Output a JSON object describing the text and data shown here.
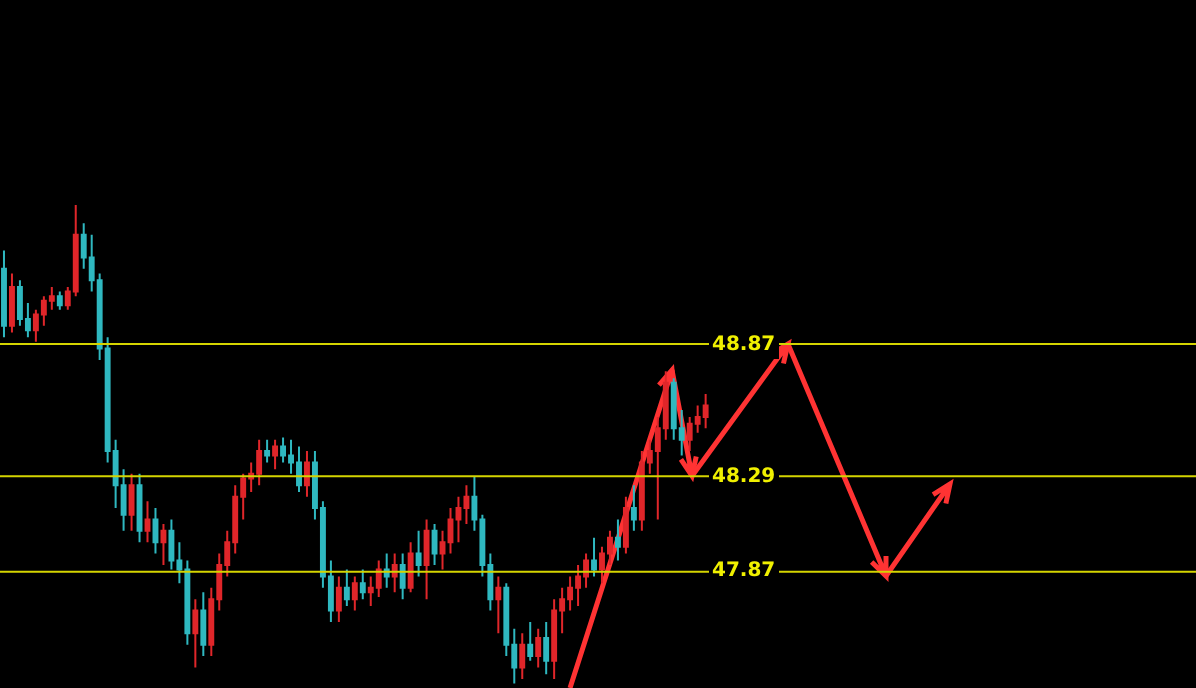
{
  "chart_data": {
    "type": "candlestick",
    "categories": [
      null,
      null,
      null,
      null,
      null,
      null,
      null,
      null,
      null,
      null,
      null,
      null,
      null,
      null,
      null,
      null,
      null,
      null,
      null,
      null,
      null,
      null,
      null,
      null,
      null,
      null,
      null,
      null,
      null,
      null,
      null,
      null,
      null,
      null,
      null,
      null,
      null,
      null,
      null,
      null,
      null,
      null,
      null,
      null,
      null,
      null,
      null,
      null,
      null,
      null,
      null,
      null,
      null,
      null,
      null,
      null,
      null,
      null,
      null,
      null,
      null,
      null,
      null,
      null,
      null,
      null,
      null,
      null,
      null,
      null,
      null,
      null,
      null,
      null,
      null,
      null,
      null,
      null,
      null,
      null,
      null,
      null,
      null,
      null,
      null,
      null,
      null,
      null,
      null,
      null,
      null,
      null,
      null,
      null,
      null,
      null,
      null,
      null,
      null,
      null,
      null,
      null,
      null,
      null,
      null,
      null,
      null,
      null,
      null,
      null,
      null,
      null,
      null,
      null,
      null,
      null,
      null,
      null,
      null,
      null,
      null,
      null,
      null,
      null,
      null,
      null,
      null,
      null,
      null,
      null,
      null,
      null,
      null,
      null,
      null,
      null,
      null,
      null,
      null,
      null,
      null,
      null,
      null,
      null,
      null,
      null,
      null,
      null,
      null,
      null
    ],
    "ohlc": [
      [
        49.2,
        49.28,
        48.9,
        48.95
      ],
      [
        48.95,
        49.18,
        48.92,
        49.12
      ],
      [
        49.12,
        49.15,
        48.95,
        48.98
      ],
      [
        48.98,
        49.05,
        48.9,
        48.93
      ],
      [
        48.93,
        49.02,
        48.88,
        49.0
      ],
      [
        49.0,
        49.08,
        48.95,
        49.06
      ],
      [
        49.06,
        49.12,
        49.02,
        49.08
      ],
      [
        49.08,
        49.1,
        49.02,
        49.04
      ],
      [
        49.04,
        49.12,
        49.02,
        49.1
      ],
      [
        49.1,
        49.48,
        49.08,
        49.35
      ],
      [
        49.35,
        49.4,
        49.2,
        49.25
      ],
      [
        49.25,
        49.35,
        49.1,
        49.15
      ],
      [
        49.15,
        49.18,
        48.8,
        48.85
      ],
      [
        48.85,
        48.9,
        48.35,
        48.4
      ],
      [
        48.4,
        48.45,
        48.15,
        48.25
      ],
      [
        48.25,
        48.32,
        48.05,
        48.12
      ],
      [
        48.12,
        48.3,
        48.05,
        48.25
      ],
      [
        48.25,
        48.3,
        48.0,
        48.05
      ],
      [
        48.05,
        48.18,
        48.0,
        48.1
      ],
      [
        48.1,
        48.15,
        47.95,
        48.0
      ],
      [
        48.0,
        48.08,
        47.9,
        48.05
      ],
      [
        48.05,
        48.1,
        47.88,
        47.92
      ],
      [
        47.92,
        48.0,
        47.82,
        47.88
      ],
      [
        47.88,
        47.92,
        47.55,
        47.6
      ],
      [
        47.6,
        47.75,
        47.45,
        47.7
      ],
      [
        47.7,
        47.78,
        47.5,
        47.55
      ],
      [
        47.55,
        47.8,
        47.5,
        47.75
      ],
      [
        47.75,
        47.95,
        47.7,
        47.9
      ],
      [
        47.9,
        48.05,
        47.85,
        48.0
      ],
      [
        48.0,
        48.25,
        47.95,
        48.2
      ],
      [
        48.2,
        48.3,
        48.1,
        48.28
      ],
      [
        48.28,
        48.35,
        48.22,
        48.3
      ],
      [
        48.3,
        48.45,
        48.25,
        48.4
      ],
      [
        48.4,
        48.45,
        48.35,
        48.38
      ],
      [
        48.38,
        48.45,
        48.32,
        48.42
      ],
      [
        48.42,
        48.46,
        48.35,
        48.38
      ],
      [
        48.38,
        48.45,
        48.3,
        48.35
      ],
      [
        48.35,
        48.42,
        48.22,
        48.25
      ],
      [
        48.25,
        48.4,
        48.2,
        48.35
      ],
      [
        48.35,
        48.4,
        48.1,
        48.15
      ],
      [
        48.15,
        48.18,
        47.8,
        47.85
      ],
      [
        47.85,
        47.92,
        47.65,
        47.7
      ],
      [
        47.7,
        47.85,
        47.65,
        47.8
      ],
      [
        47.8,
        47.88,
        47.72,
        47.75
      ],
      [
        47.75,
        47.85,
        47.7,
        47.82
      ],
      [
        47.82,
        47.88,
        47.75,
        47.78
      ],
      [
        47.78,
        47.85,
        47.72,
        47.8
      ],
      [
        47.8,
        47.92,
        47.76,
        47.88
      ],
      [
        47.88,
        47.95,
        47.8,
        47.85
      ],
      [
        47.85,
        47.95,
        47.78,
        47.9
      ],
      [
        47.9,
        47.95,
        47.75,
        47.8
      ],
      [
        47.8,
        48.0,
        47.78,
        47.95
      ],
      [
        47.95,
        48.05,
        47.85,
        47.9
      ],
      [
        47.9,
        48.1,
        47.75,
        48.05
      ],
      [
        48.05,
        48.08,
        47.9,
        47.95
      ],
      [
        47.95,
        48.05,
        47.88,
        48.0
      ],
      [
        48.0,
        48.15,
        47.95,
        48.1
      ],
      [
        48.1,
        48.2,
        48.0,
        48.15
      ],
      [
        48.15,
        48.25,
        48.08,
        48.2
      ],
      [
        48.2,
        48.29,
        48.05,
        48.1
      ],
      [
        48.1,
        48.12,
        47.85,
        47.9
      ],
      [
        47.9,
        47.95,
        47.7,
        47.75
      ],
      [
        47.75,
        47.85,
        47.6,
        47.8
      ],
      [
        47.8,
        47.82,
        47.5,
        47.55
      ],
      [
        47.55,
        47.62,
        47.38,
        47.45
      ],
      [
        47.45,
        47.6,
        47.4,
        47.55
      ],
      [
        47.55,
        47.65,
        47.48,
        47.5
      ],
      [
        47.5,
        47.62,
        47.45,
        47.58
      ],
      [
        47.58,
        47.65,
        47.42,
        47.48
      ],
      [
        47.48,
        47.75,
        47.4,
        47.7
      ],
      [
        47.7,
        47.8,
        47.6,
        47.75
      ],
      [
        47.75,
        47.85,
        47.7,
        47.8
      ],
      [
        47.8,
        47.9,
        47.72,
        47.85
      ],
      [
        47.85,
        47.95,
        47.8,
        47.92
      ],
      [
        47.92,
        48.02,
        47.85,
        47.88
      ],
      [
        47.88,
        47.98,
        47.82,
        47.95
      ],
      [
        47.95,
        48.05,
        47.9,
        48.02
      ],
      [
        48.02,
        48.1,
        47.92,
        47.98
      ],
      [
        47.98,
        48.2,
        47.95,
        48.15
      ],
      [
        48.15,
        48.25,
        48.05,
        48.1
      ],
      [
        48.1,
        48.4,
        48.05,
        48.35
      ],
      [
        48.35,
        48.45,
        48.3,
        48.4
      ],
      [
        48.4,
        48.55,
        48.1,
        48.5
      ],
      [
        48.5,
        48.75,
        48.45,
        48.7
      ],
      [
        48.7,
        48.72,
        48.45,
        48.5
      ],
      [
        48.5,
        48.58,
        48.38,
        48.45
      ],
      [
        48.45,
        48.55,
        48.4,
        48.52
      ],
      [
        48.52,
        48.6,
        48.48,
        48.55
      ],
      [
        48.55,
        48.65,
        48.5,
        48.6
      ],
      null,
      null,
      null,
      null,
      null,
      null,
      null,
      null,
      null,
      null,
      null,
      null,
      null,
      null,
      null,
      null,
      null,
      null,
      null,
      null,
      null,
      null,
      null,
      null,
      null,
      null,
      null,
      null,
      null,
      null,
      null,
      null,
      null,
      null,
      null,
      null,
      null,
      null,
      null,
      null,
      null,
      null,
      null,
      null,
      null,
      null,
      null,
      null,
      null,
      null,
      null,
      null,
      null,
      null,
      null,
      null,
      null,
      null,
      null,
      null,
      null
    ],
    "ylim": [
      47.36,
      50.38
    ],
    "yticks": [
      47.87,
      48.29,
      48.87
    ],
    "ref_lines": [
      {
        "axis": "y",
        "value": 48.87,
        "color": "#d4d400"
      },
      {
        "axis": "y",
        "value": 48.29,
        "color": "#d4d400"
      },
      {
        "axis": "y",
        "value": 47.87,
        "color": "#d4d400"
      }
    ]
  }
}
